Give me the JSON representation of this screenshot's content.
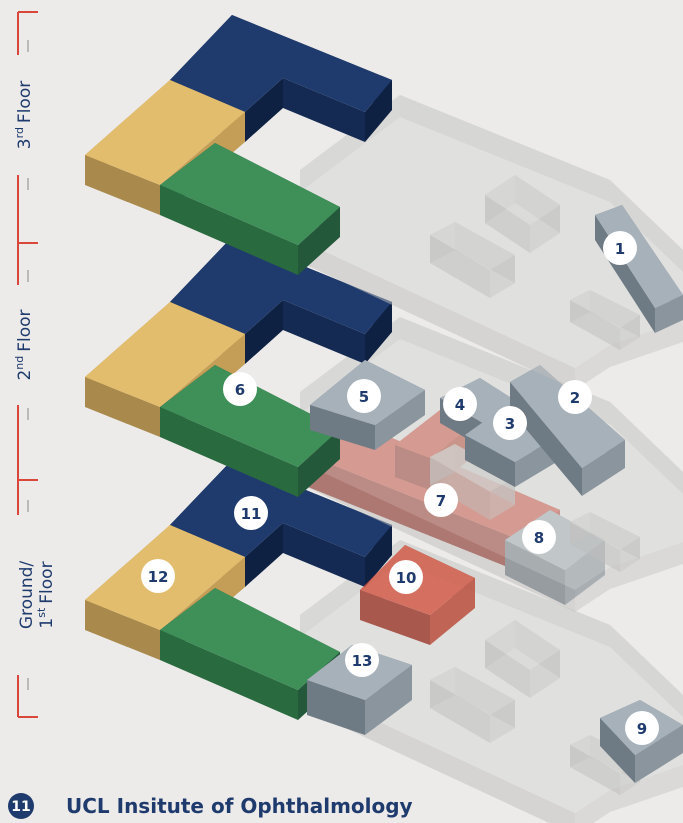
{
  "floors": [
    {
      "number": "3",
      "suffix": "rd",
      "label": "Floor"
    },
    {
      "number": "2",
      "suffix": "nd",
      "label": "Floor"
    },
    {
      "prefix": "Ground/",
      "number": "1",
      "suffix": "st",
      "label": "Floor"
    }
  ],
  "markers": [
    "1",
    "2",
    "3",
    "4",
    "5",
    "6",
    "7",
    "8",
    "9",
    "10",
    "11",
    "12",
    "13"
  ],
  "legend": {
    "marker": "11",
    "label": "UCL Insitute of Ophthalmology"
  }
}
